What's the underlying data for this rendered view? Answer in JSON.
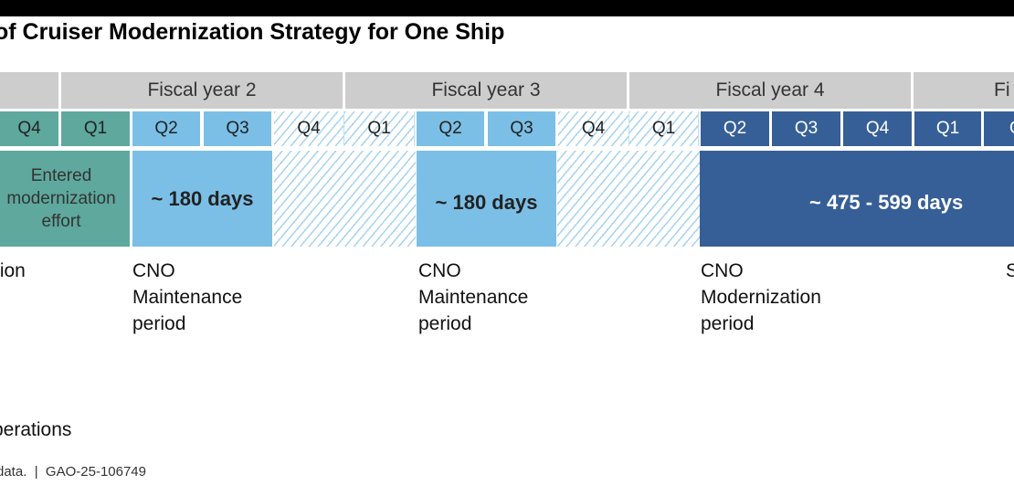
{
  "title": "of Cruiser Modernization Strategy for One Ship",
  "fiscal_years": [
    "",
    "Fiscal year 2",
    "Fiscal year 3",
    "Fiscal year 4",
    "Fi"
  ],
  "quarters": [
    "Q4",
    "Q1",
    "Q2",
    "Q3",
    "Q4",
    "Q1",
    "Q2",
    "Q3",
    "Q4",
    "Q1",
    "Q2",
    "Q3",
    "Q4",
    "Q1",
    "Q"
  ],
  "bars": {
    "entered": "Entered modernization effort",
    "maint1": "~ 180 days",
    "maint2": "~ 180 days",
    "modern": "~ 475 - 599 days"
  },
  "labels": {
    "left": "tion",
    "cno1": [
      "CNO",
      "Maintenance",
      "period"
    ],
    "cno2": [
      "CNO",
      "Maintenance",
      "period"
    ],
    "cno3": [
      "CNO",
      "Modernization",
      "period"
    ],
    "right": "S"
  },
  "legend": "perations",
  "source": "data.  |  GAO-25-106749",
  "colors": {
    "teal": "#5ea89d",
    "light_blue": "#7bbfe6",
    "dark_blue": "#365f98",
    "gray": "#cdcdcd"
  }
}
